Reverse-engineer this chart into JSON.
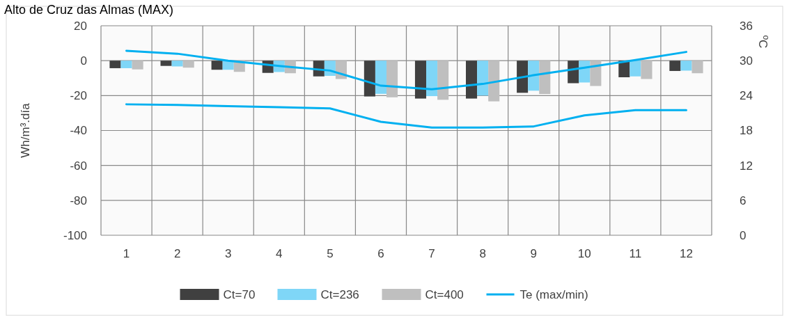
{
  "chart_data": {
    "type": "bar",
    "title": "Alto de Cruz das Almas (MAX)",
    "ylabel": "Wh/m³.día",
    "y2label": "ºC",
    "categories": [
      "1",
      "2",
      "3",
      "4",
      "5",
      "6",
      "7",
      "8",
      "9",
      "10",
      "11",
      "12"
    ],
    "series": [
      {
        "name": "Ct=70",
        "color": "#404040",
        "values": [
          -4.3,
          -3,
          -5.2,
          -7,
          -9,
          -20.5,
          -21.7,
          -21.7,
          -18.4,
          -12.9,
          -9.5,
          -5.9
        ]
      },
      {
        "name": "Ct=236",
        "color": "#7fd6f7",
        "values": [
          -4.3,
          -3.3,
          -5.2,
          -6.5,
          -8.7,
          -19,
          -20.3,
          -20,
          -17.2,
          -12.5,
          -9,
          -5.7
        ]
      },
      {
        "name": "Ct=400",
        "color": "#bfbfbf",
        "values": [
          -5,
          -4,
          -6.4,
          -7.2,
          -10.5,
          -21,
          -22.4,
          -23.3,
          -19.1,
          -14.5,
          -10.5,
          -7.2
        ]
      },
      {
        "name": "Te (max/min)",
        "type": "line",
        "axis": "y2",
        "color": "#00b0f0",
        "values": [
          31.7,
          31.2,
          30,
          29.1,
          28.3,
          25.7,
          25.1,
          26,
          27.5,
          28.8,
          30.1,
          31.5
        ]
      },
      {
        "type": "line",
        "axis": "y2",
        "color": "#00b0f0",
        "values": [
          22.5,
          22.4,
          22.2,
          22,
          21.8,
          19.5,
          18.5,
          18.5,
          18.7,
          20.6,
          21.5,
          21.5
        ]
      }
    ],
    "ylim": [
      -100,
      20
    ],
    "yticks": [
      -100,
      -80,
      -60,
      -40,
      -20,
      0,
      20
    ],
    "y2lim": [
      0,
      36
    ],
    "y2ticks": [
      0,
      6,
      12,
      18,
      24,
      30,
      36
    ],
    "grid": true,
    "legend": "bottom",
    "marker": "none"
  }
}
